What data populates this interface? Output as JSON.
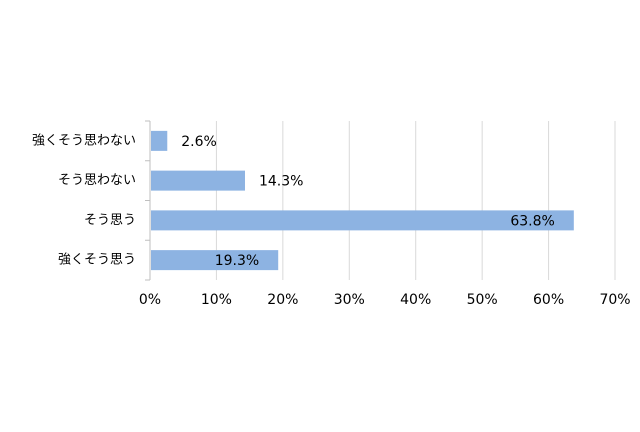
{
  "chart_data": {
    "type": "bar",
    "orientation": "horizontal",
    "categories": [
      "強くそう思わない",
      "そう思わない",
      "そう思う",
      "強くそう思う"
    ],
    "values": [
      2.6,
      14.3,
      63.8,
      19.3
    ],
    "data_labels": [
      "2.6%",
      "14.3%",
      "63.8%",
      "19.3%"
    ],
    "x_ticks": [
      "0%",
      "10%",
      "20%",
      "30%",
      "40%",
      "50%",
      "60%",
      "70%"
    ],
    "xlim": [
      0,
      70
    ],
    "grid": "vertical",
    "legend": "none",
    "colors": {
      "bar": "#8db3e2",
      "grid": "#d9d9d9",
      "axis": "#bfbfbf",
      "text": "#000000"
    }
  }
}
